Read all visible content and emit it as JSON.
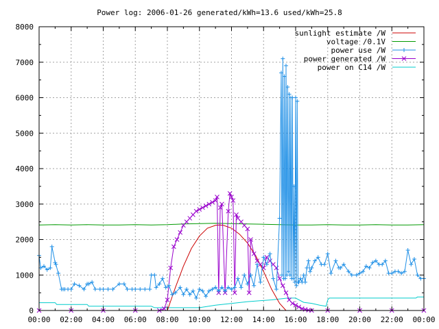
{
  "chart_data": {
    "type": "line",
    "title": "Power log: 2006-01-26 generated/kWh=13.6 used/kWh=25.8",
    "xlabel": "",
    "ylabel": "",
    "xlim_hours": [
      0,
      24
    ],
    "ylim": [
      0,
      8000
    ],
    "x_ticks": [
      "00:00",
      "02:00",
      "04:00",
      "06:00",
      "08:00",
      "10:00",
      "12:00",
      "14:00",
      "16:00",
      "18:00",
      "20:00",
      "22:00",
      "00:00"
    ],
    "y_ticks": [
      0,
      1000,
      2000,
      3000,
      4000,
      5000,
      6000,
      7000,
      8000
    ],
    "grid": true,
    "legend_position": "top-right",
    "series": [
      {
        "name": "sunlight estimate /W",
        "color": "#cc0000",
        "marker": "none",
        "x": [
          8.0,
          8.5,
          9.0,
          9.5,
          10.0,
          10.5,
          11.0,
          11.25,
          11.5,
          12.0,
          12.5,
          13.0,
          13.5,
          14.0,
          14.5,
          15.0,
          15.4
        ],
        "y": [
          0,
          650,
          1250,
          1750,
          2100,
          2320,
          2400,
          2410,
          2400,
          2320,
          2150,
          1900,
          1550,
          1100,
          600,
          200,
          0
        ]
      },
      {
        "name": "voltage /0.1V",
        "color": "#009900",
        "marker": "none",
        "x": [
          0,
          1,
          2,
          3,
          4,
          5,
          6,
          7,
          8,
          9,
          10,
          11,
          12,
          13,
          14,
          15,
          16,
          17,
          18,
          19,
          20,
          21,
          22,
          23,
          24
        ],
        "y": [
          2410,
          2420,
          2410,
          2420,
          2410,
          2410,
          2420,
          2410,
          2420,
          2440,
          2450,
          2460,
          2450,
          2440,
          2430,
          2420,
          2410,
          2410,
          2420,
          2410,
          2410,
          2420,
          2410,
          2410,
          2420
        ]
      },
      {
        "name": "power use /W",
        "color": "#1e8fe6",
        "marker": "plus",
        "x": [
          0,
          0.1,
          0.3,
          0.5,
          0.7,
          0.8,
          1.0,
          1.05,
          1.2,
          1.4,
          1.5,
          1.6,
          1.8,
          2.0,
          2.2,
          2.5,
          2.8,
          3.0,
          3.1,
          3.3,
          3.5,
          3.8,
          4.0,
          4.3,
          4.6,
          5.0,
          5.3,
          5.5,
          5.8,
          6.0,
          6.3,
          6.6,
          6.9,
          7.0,
          7.2,
          7.3,
          7.5,
          7.7,
          7.9,
          8.1,
          8.3,
          8.5,
          8.8,
          9.0,
          9.2,
          9.4,
          9.6,
          9.8,
          10.0,
          10.2,
          10.4,
          10.6,
          10.8,
          11.0,
          11.2,
          11.4,
          11.6,
          11.8,
          12.0,
          12.2,
          12.4,
          12.6,
          12.8,
          13.0,
          13.2,
          13.4,
          13.6,
          13.8,
          14.0,
          14.2,
          14.4,
          14.6,
          14.8,
          15.0,
          15.1,
          15.15,
          15.2,
          15.25,
          15.3,
          15.35,
          15.4,
          15.45,
          15.5,
          15.55,
          15.6,
          15.65,
          15.7,
          15.75,
          15.8,
          15.85,
          15.9,
          15.95,
          16.0,
          16.05,
          16.1,
          16.15,
          16.2,
          16.3,
          16.4,
          16.5,
          16.6,
          16.7,
          16.8,
          16.9,
          17.0,
          17.2,
          17.4,
          17.6,
          17.8,
          18.0,
          18.2,
          18.5,
          18.7,
          18.8,
          19.0,
          19.3,
          19.5,
          19.8,
          20.0,
          20.2,
          20.4,
          20.6,
          20.8,
          21.0,
          21.2,
          21.4,
          21.6,
          21.8,
          22.0,
          22.2,
          22.4,
          22.6,
          22.8,
          23.0,
          23.2,
          23.4,
          23.6,
          23.8,
          24.0
        ],
        "y": [
          1550,
          1200,
          1250,
          1150,
          1200,
          1800,
          1350,
          1300,
          1050,
          600,
          600,
          600,
          600,
          600,
          750,
          700,
          600,
          750,
          750,
          800,
          600,
          600,
          600,
          600,
          600,
          750,
          750,
          600,
          600,
          600,
          600,
          600,
          600,
          1000,
          1000,
          650,
          750,
          900,
          650,
          700,
          450,
          500,
          650,
          450,
          600,
          450,
          550,
          350,
          600,
          550,
          400,
          550,
          600,
          650,
          550,
          650,
          550,
          650,
          600,
          650,
          900,
          650,
          1000,
          750,
          1000,
          700,
          1300,
          800,
          1500,
          1300,
          1600,
          900,
          600,
          2600,
          6700,
          1000,
          7100,
          900,
          6600,
          900,
          6900,
          1000,
          6300,
          1100,
          6100,
          1000,
          6000,
          900,
          6000,
          900,
          3500,
          800,
          6000,
          700,
          5900,
          800,
          800,
          900,
          800,
          1000,
          800,
          1200,
          1400,
          1100,
          1200,
          1400,
          1500,
          1300,
          1300,
          1600,
          1050,
          1400,
          1200,
          1200,
          1300,
          1100,
          1000,
          1000,
          1050,
          1100,
          1250,
          1200,
          1350,
          1400,
          1300,
          1300,
          1400,
          1050,
          1050,
          1100,
          1100,
          1050,
          1100,
          1700,
          1300,
          1450,
          1000,
          900,
          900
        ]
      },
      {
        "name": "power generated /W",
        "color": "#9900cc",
        "marker": "cross",
        "x": [
          0,
          2,
          4,
          6,
          7.5,
          7.8,
          8.0,
          8.2,
          8.4,
          8.6,
          8.8,
          9.0,
          9.2,
          9.4,
          9.6,
          9.8,
          10.0,
          10.2,
          10.4,
          10.6,
          10.8,
          11.0,
          11.1,
          11.2,
          11.3,
          11.4,
          11.6,
          11.8,
          11.9,
          12.0,
          12.1,
          12.2,
          12.3,
          12.4,
          12.6,
          12.8,
          13.0,
          13.1,
          13.2,
          13.4,
          13.6,
          13.8,
          14.0,
          14.2,
          14.4,
          14.6,
          14.8,
          15.0,
          15.2,
          15.4,
          15.6,
          15.8,
          16.0,
          16.2,
          16.4,
          16.6,
          16.8,
          17.0,
          18,
          20,
          22,
          24
        ],
        "y": [
          0,
          0,
          0,
          0,
          0,
          50,
          300,
          1200,
          1800,
          2000,
          2200,
          2400,
          2500,
          2600,
          2700,
          2800,
          2850,
          2900,
          2950,
          3000,
          3050,
          3100,
          3200,
          500,
          2900,
          3000,
          500,
          2800,
          3300,
          3200,
          3100,
          500,
          2700,
          2600,
          2500,
          2400,
          2300,
          500,
          2000,
          1600,
          1400,
          1300,
          1200,
          1500,
          1400,
          1300,
          1200,
          900,
          700,
          500,
          300,
          200,
          150,
          100,
          50,
          30,
          10,
          0,
          0,
          0,
          0,
          0
        ]
      },
      {
        "name": "power on C14 /W",
        "color": "#00cccc",
        "marker": "none",
        "x": [
          0,
          1.0,
          1.1,
          3.0,
          3.1,
          7.0,
          7.2,
          10.0,
          11.0,
          13.0,
          14.5,
          15.5,
          16.0,
          16.5,
          17.0,
          17.5,
          17.9,
          18.0,
          18.1,
          20.0,
          22.0,
          23.5,
          23.6,
          24.0
        ],
        "y": [
          220,
          220,
          170,
          170,
          120,
          120,
          80,
          80,
          150,
          250,
          300,
          350,
          350,
          230,
          200,
          150,
          120,
          300,
          350,
          350,
          350,
          350,
          380,
          380
        ]
      }
    ]
  }
}
